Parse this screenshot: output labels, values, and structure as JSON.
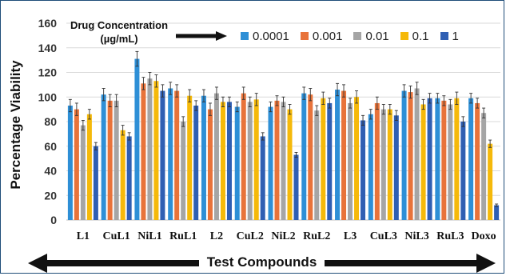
{
  "chart_data": {
    "type": "bar",
    "ylabel": "Percentage Viability",
    "xlabel": "Test Compounds",
    "ylim": [
      0,
      160
    ],
    "yticks": [
      0,
      20,
      40,
      60,
      80,
      100,
      120,
      140,
      160
    ],
    "grid": true,
    "legend_title": [
      "Drug Concentration",
      "(µg/mL)"
    ],
    "legend_position": "top",
    "categories": [
      "L1",
      "CuL1",
      "NiL1",
      "RuL1",
      "L2",
      "CuL2",
      "NiL2",
      "RuL2",
      "L3",
      "CuL3",
      "NiL3",
      "RuL3",
      "Doxo"
    ],
    "series": [
      {
        "name": "0.0001",
        "color": "#2e8fd6",
        "values": [
          93,
          102,
          131,
          107,
          101,
          92,
          92,
          103,
          106,
          86,
          105,
          99,
          99
        ],
        "errors": [
          5,
          5,
          6,
          5,
          5,
          4,
          4,
          5,
          5,
          4,
          5,
          4,
          4
        ]
      },
      {
        "name": "0.001",
        "color": "#e8733a",
        "values": [
          90,
          97,
          111,
          105,
          90,
          103,
          97,
          102,
          105,
          95,
          104,
          97,
          95
        ],
        "errors": [
          5,
          5,
          5,
          5,
          5,
          5,
          4,
          5,
          5,
          5,
          5,
          4,
          4
        ]
      },
      {
        "name": "0.01",
        "color": "#a5a5a5",
        "values": [
          77,
          97,
          115,
          80,
          103,
          96,
          96,
          89,
          95,
          90,
          107,
          94,
          87
        ],
        "errors": [
          4,
          5,
          5,
          4,
          5,
          4,
          4,
          4,
          4,
          4,
          5,
          4,
          4
        ]
      },
      {
        "name": "0.1",
        "color": "#f5b90a",
        "values": [
          86,
          73,
          113,
          101,
          96,
          98,
          90,
          99,
          100,
          90,
          94,
          99,
          62
        ],
        "errors": [
          4,
          4,
          5,
          5,
          4,
          5,
          4,
          5,
          5,
          4,
          4,
          5,
          3
        ]
      },
      {
        "name": "1",
        "color": "#2f5fb3",
        "values": [
          60,
          68,
          105,
          93,
          96,
          68,
          53,
          95,
          81,
          85,
          99,
          80,
          12
        ],
        "errors": [
          3,
          3,
          5,
          4,
          4,
          3,
          2,
          4,
          4,
          4,
          4,
          4,
          1
        ]
      }
    ]
  }
}
